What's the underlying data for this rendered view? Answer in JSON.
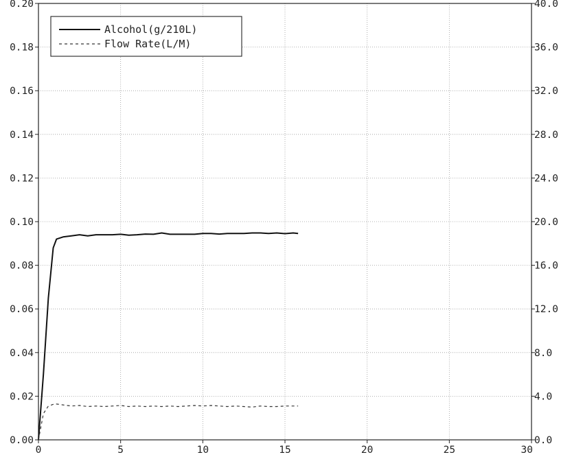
{
  "chart_data": {
    "type": "line",
    "xlim": [
      0,
      30
    ],
    "ylim_left": [
      0,
      0.2
    ],
    "ylim_right": [
      0,
      40.0
    ],
    "x_ticks": [
      0,
      5,
      10,
      15,
      20,
      25,
      30
    ],
    "x_tick_labels": [
      "0",
      "5",
      "10",
      "15",
      "20",
      "25",
      "30"
    ],
    "y_left_ticks": [
      0,
      0.02,
      0.04,
      0.06,
      0.08,
      0.1,
      0.12,
      0.14,
      0.16,
      0.18,
      0.2
    ],
    "y_left_tick_labels": [
      "0.00",
      "0.02",
      "0.04",
      "0.06",
      "0.08",
      "0.10",
      "0.12",
      "0.14",
      "0.16",
      "0.18",
      "0.20"
    ],
    "y_right_ticks": [
      0,
      4,
      8,
      12,
      16,
      20,
      24,
      28,
      32,
      36,
      40
    ],
    "y_right_tick_labels": [
      "0.0",
      "4.0",
      "8.0",
      "12.0",
      "16.0",
      "20.0",
      "24.0",
      "28.0",
      "32.0",
      "36.0",
      "40.0"
    ],
    "grid": true,
    "legend_position": "top-left",
    "series": [
      {
        "name": "Alcohol(g/210L)",
        "axis": "left",
        "style": "solid",
        "color": "#111111",
        "x": [
          0.0,
          0.3,
          0.6,
          0.9,
          1.1,
          1.5,
          2.0,
          2.5,
          3.0,
          3.5,
          4.0,
          4.5,
          5.0,
          5.5,
          6.0,
          6.5,
          7.0,
          7.5,
          8.0,
          8.5,
          9.0,
          9.5,
          10.0,
          10.5,
          11.0,
          11.5,
          12.0,
          12.5,
          13.0,
          13.5,
          14.0,
          14.5,
          15.0,
          15.5,
          15.8
        ],
        "y": [
          0.0,
          0.03,
          0.065,
          0.088,
          0.092,
          0.093,
          0.0935,
          0.094,
          0.0935,
          0.094,
          0.094,
          0.094,
          0.0942,
          0.0938,
          0.094,
          0.0943,
          0.0942,
          0.0948,
          0.0942,
          0.0942,
          0.0942,
          0.0942,
          0.0946,
          0.0946,
          0.0943,
          0.0946,
          0.0946,
          0.0946,
          0.0948,
          0.0948,
          0.0946,
          0.0948,
          0.0945,
          0.0948,
          0.0946
        ]
      },
      {
        "name": "Flow Rate(L/M)",
        "axis": "right",
        "style": "dashed",
        "color": "#333333",
        "x": [
          0.0,
          0.3,
          0.6,
          1.0,
          1.5,
          2.0,
          2.5,
          3.0,
          3.5,
          4.0,
          4.5,
          5.0,
          5.5,
          6.0,
          6.5,
          7.0,
          7.5,
          8.0,
          8.5,
          9.0,
          9.5,
          10.0,
          10.5,
          11.0,
          11.5,
          12.0,
          12.5,
          13.0,
          13.5,
          14.0,
          14.5,
          15.0,
          15.5,
          15.8
        ],
        "y": [
          0.0,
          2.4,
          3.1,
          3.3,
          3.2,
          3.1,
          3.15,
          3.05,
          3.1,
          3.05,
          3.1,
          3.15,
          3.05,
          3.1,
          3.05,
          3.1,
          3.05,
          3.1,
          3.05,
          3.1,
          3.15,
          3.1,
          3.15,
          3.1,
          3.05,
          3.1,
          3.05,
          3.0,
          3.1,
          3.05,
          3.05,
          3.1,
          3.1,
          3.1
        ]
      }
    ]
  }
}
